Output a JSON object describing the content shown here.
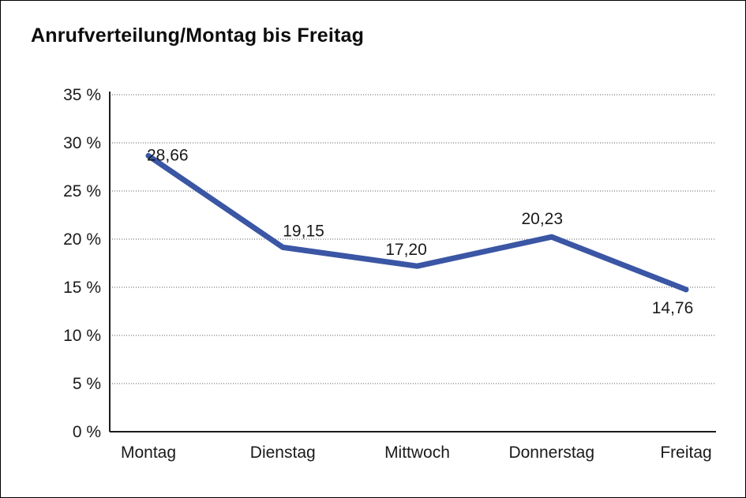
{
  "chart_data": {
    "type": "line",
    "title": "Anrufverteilung/Montag bis Freitag",
    "categories": [
      "Montag",
      "Dienstag",
      "Mittwoch",
      "Donnerstag",
      "Freitag"
    ],
    "series": [
      {
        "values": [
          28.66,
          19.15,
          17.2,
          20.23,
          14.76
        ],
        "value_labels": [
          "28,66",
          "19,15",
          "17,20",
          "20,23",
          "14,76"
        ],
        "color": "#3A56A4"
      }
    ],
    "xlabel": "",
    "ylabel": "",
    "ylim": [
      0,
      35
    ],
    "ytick_step": 5,
    "ytick_labels": [
      "0 %",
      "5 %",
      "10 %",
      "15 %",
      "20 %",
      "25 %",
      "30 %",
      "35 %"
    ],
    "unit": "%",
    "grid": "horizontal-dotted",
    "legend_position": "none"
  },
  "styles": {
    "line_color": "#3A56A4",
    "axis_color": "#1C1C1C",
    "grid_color": "#5A5A5A",
    "text_color": "#1A1A1A",
    "background": "#FFFFFF",
    "frame_border_color": "#000000"
  }
}
